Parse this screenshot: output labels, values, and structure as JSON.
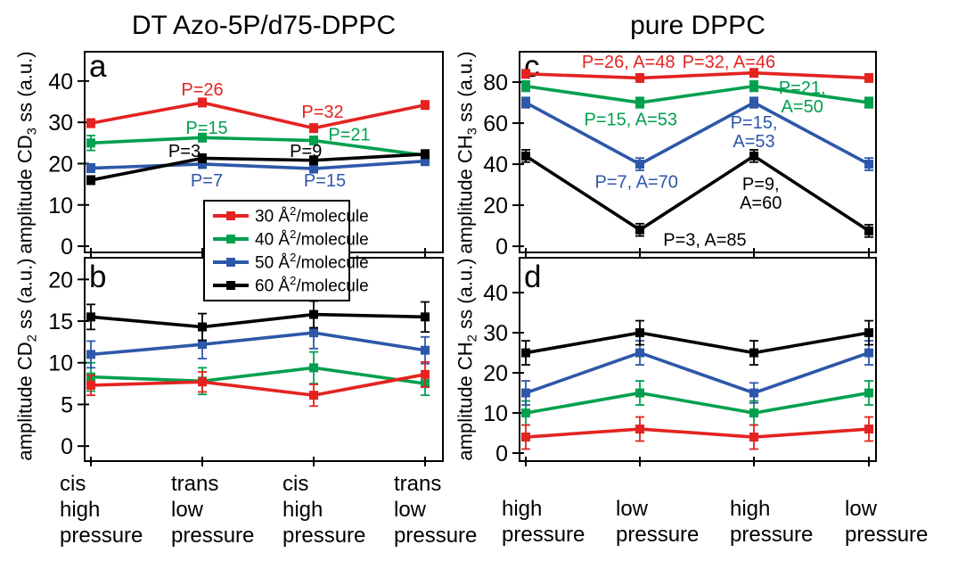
{
  "figure": {
    "background": "#ffffff"
  },
  "palette": {
    "red": "#e42320",
    "green": "#00a04e",
    "blue": "#2d57a8",
    "black": "#000000"
  },
  "titles": {
    "left": "DT Azo-5P/d75-DPPC",
    "right": "pure DPPC"
  },
  "legend": {
    "entries": [
      {
        "pre": "30 Å",
        "sup": "2",
        "post": "/molecule",
        "color": "red"
      },
      {
        "pre": "40 Å",
        "sup": "2",
        "post": "/molecule",
        "color": "green"
      },
      {
        "pre": "50 Å",
        "sup": "2",
        "post": "/molecule",
        "color": "blue"
      },
      {
        "pre": "60 Å",
        "sup": "2",
        "post": "/molecule",
        "color": "black"
      }
    ]
  },
  "x_labels": {
    "left": [
      [
        "cis",
        "high",
        "pressure"
      ],
      [
        "trans",
        "low",
        "pressure"
      ],
      [
        "cis",
        "high",
        "pressure"
      ],
      [
        "trans",
        "low",
        "pressure"
      ]
    ],
    "right": [
      [
        "high",
        "pressure"
      ],
      [
        "low",
        "pressure"
      ],
      [
        "high",
        "pressure"
      ],
      [
        "low",
        "pressure"
      ]
    ]
  },
  "chart_data": [
    {
      "id": "a",
      "type": "line",
      "letter": "a",
      "ylabel": {
        "pre": "amplitude CD",
        "sub": "3",
        "post": " ss (a.u.)"
      },
      "ylim": [
        -1.5,
        47.1
      ],
      "yticks": [
        0,
        10,
        20,
        30,
        40
      ],
      "x_label_set": "left",
      "series": [
        {
          "name": "30 Å²/molecule",
          "color": "red",
          "values": [
            29.8,
            34.8,
            28.6,
            34.2
          ],
          "errors": [
            1,
            1,
            1,
            1
          ]
        },
        {
          "name": "40 Å²/molecule",
          "color": "green",
          "values": [
            25,
            26.3,
            25.6,
            22
          ],
          "errors": [
            1.8,
            1,
            1,
            1
          ]
        },
        {
          "name": "50 Å²/molecule",
          "color": "blue",
          "values": [
            18.9,
            19.9,
            18.8,
            20.6
          ],
          "errors": [
            1,
            1,
            1,
            1
          ]
        },
        {
          "name": "60 Å²/molecule",
          "color": "black",
          "values": [
            16,
            21.3,
            20.8,
            22.3
          ],
          "errors": [
            1,
            1,
            1,
            1
          ]
        }
      ],
      "annotations": [
        {
          "lines": [
            "P=26"
          ],
          "color": "red",
          "x": 1.0,
          "y": 38.0
        },
        {
          "lines": [
            "P=32"
          ],
          "color": "red",
          "x": 2.08,
          "y": 32.6
        },
        {
          "lines": [
            "P=15"
          ],
          "color": "green",
          "x": 1.04,
          "y": 28.7
        },
        {
          "lines": [
            "P=21"
          ],
          "color": "green",
          "x": 2.32,
          "y": 27.1
        },
        {
          "lines": [
            "P=3"
          ],
          "color": "black",
          "x": 0.84,
          "y": 23.1
        },
        {
          "lines": [
            "P=9"
          ],
          "color": "black",
          "x": 1.93,
          "y": 23.1
        },
        {
          "lines": [
            "P=7"
          ],
          "color": "blue",
          "x": 1.04,
          "y": 16.0
        },
        {
          "lines": [
            "P=15"
          ],
          "color": "blue",
          "x": 2.1,
          "y": 16.0
        }
      ]
    },
    {
      "id": "b",
      "type": "line",
      "letter": "b",
      "ylabel": {
        "pre": "amplitude CD",
        "sub": "2",
        "post": " ss (a.u.)"
      },
      "ylim": [
        -1.8,
        22.6
      ],
      "yticks": [
        0,
        5,
        10,
        15,
        20
      ],
      "x_label_set": "left",
      "series": [
        {
          "name": "30 Å²/molecule",
          "color": "red",
          "values": [
            7.3,
            7.7,
            6.1,
            8.6
          ],
          "errors": [
            1.2,
            1.2,
            1.3,
            1.5
          ]
        },
        {
          "name": "40 Å²/molecule",
          "color": "green",
          "values": [
            8.3,
            7.8,
            9.4,
            7.5
          ],
          "errors": [
            1.7,
            1.6,
            1.9,
            1.4
          ]
        },
        {
          "name": "50 Å²/molecule",
          "color": "blue",
          "values": [
            11,
            12.2,
            13.6,
            11.5
          ],
          "errors": [
            1.6,
            1.7,
            1.9,
            1.6
          ]
        },
        {
          "name": "60 Å²/molecule",
          "color": "black",
          "values": [
            15.5,
            14.3,
            15.8,
            15.5
          ],
          "errors": [
            1.5,
            1.6,
            1.6,
            1.8
          ]
        }
      ],
      "annotations": []
    },
    {
      "id": "c",
      "type": "line",
      "letter": "c",
      "ylabel": {
        "pre": "amplitude CH",
        "sub": "3",
        "post": " ss (a.u.)"
      },
      "ylim": [
        -3,
        94.8
      ],
      "yticks": [
        0,
        20,
        40,
        60,
        80
      ],
      "x_label_set": "right",
      "series": [
        {
          "name": "30 Å²/molecule",
          "color": "red",
          "values": [
            84,
            82,
            84.5,
            82
          ],
          "errors": [
            2,
            2,
            2,
            2
          ]
        },
        {
          "name": "40 Å²/molecule",
          "color": "green",
          "values": [
            78,
            70,
            78,
            70
          ],
          "errors": [
            2.5,
            2.5,
            2.5,
            2.5
          ]
        },
        {
          "name": "50 Å²/molecule",
          "color": "blue",
          "values": [
            70,
            40,
            70,
            40
          ],
          "errors": [
            2.5,
            3,
            2.5,
            3
          ]
        },
        {
          "name": "60 Å²/molecule",
          "color": "black",
          "values": [
            44,
            8,
            44,
            7.5
          ],
          "errors": [
            3,
            3,
            3,
            3
          ]
        }
      ],
      "annotations": [
        {
          "lines": [
            "P=26, A=48"
          ],
          "color": "red",
          "x": 0.9,
          "y": 90
        },
        {
          "lines": [
            "P=32, A=46"
          ],
          "color": "red",
          "x": 1.78,
          "y": 90
        },
        {
          "lines": [
            "P=15, A=53"
          ],
          "color": "green",
          "x": 0.92,
          "y": 62
        },
        {
          "lines": [
            "P=21,",
            "A=50"
          ],
          "color": "green",
          "x": 2.42,
          "y": 77.5
        },
        {
          "lines": [
            "P=7, A=70"
          ],
          "color": "blue",
          "x": 0.97,
          "y": 31.5
        },
        {
          "lines": [
            "P=15,",
            "A=53"
          ],
          "color": "blue",
          "x": 2.0,
          "y": 60.5
        },
        {
          "lines": [
            "P=9,",
            "A=60"
          ],
          "color": "black",
          "x": 2.06,
          "y": 30.5
        },
        {
          "lines": [
            "P=3, A=85"
          ],
          "color": "black",
          "x": 1.57,
          "y": 3.2
        }
      ]
    },
    {
      "id": "d",
      "type": "line",
      "letter": "d",
      "ylabel": {
        "pre": "amplitude CH",
        "sub": "2",
        "post": " ss (a.u.)"
      },
      "ylim": [
        -2,
        48.7
      ],
      "yticks": [
        0,
        10,
        20,
        30,
        40
      ],
      "x_label_set": "right",
      "series": [
        {
          "name": "30 Å²/molecule",
          "color": "red",
          "values": [
            4,
            6,
            4,
            6
          ],
          "errors": [
            3,
            3,
            3,
            3
          ]
        },
        {
          "name": "40 Å²/molecule",
          "color": "green",
          "values": [
            10,
            15,
            10,
            15
          ],
          "errors": [
            3,
            3,
            3,
            3
          ]
        },
        {
          "name": "50 Å²/molecule",
          "color": "blue",
          "values": [
            15,
            25,
            15,
            25
          ],
          "errors": [
            3,
            3,
            2.5,
            3
          ]
        },
        {
          "name": "60 Å²/molecule",
          "color": "black",
          "values": [
            25,
            30,
            25,
            30
          ],
          "errors": [
            3,
            3,
            3,
            3
          ]
        }
      ],
      "annotations": []
    }
  ]
}
